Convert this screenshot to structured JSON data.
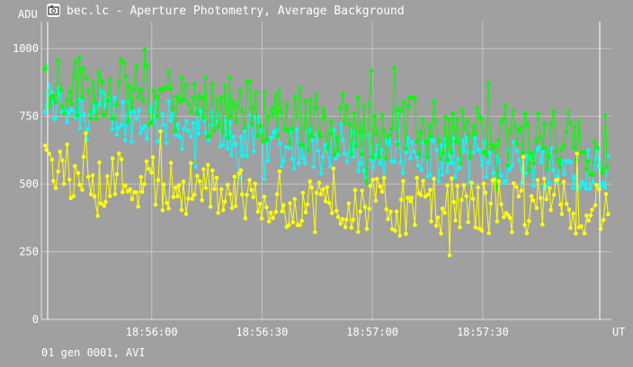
{
  "window": {
    "title": "bec.lc - Aperture Photometry, Average Background",
    "icon": "camera-icon"
  },
  "footer": {
    "text": "01 gen 0001, AVI"
  },
  "chart_data": {
    "type": "scatter",
    "title": "",
    "xlabel": "UT",
    "ylabel": "ADU",
    "x_range": [
      "18:55:30",
      "18:58:05"
    ],
    "ylim": [
      0,
      1100
    ],
    "x_ticks": [
      "18:56:00",
      "18:56:30",
      "18:57:00",
      "18:57:30"
    ],
    "y_ticks": [
      0,
      250,
      500,
      750,
      1000
    ],
    "grid": true,
    "background_color": "#a0a0a0",
    "series": [
      {
        "color": "#00ffff",
        "trend": [
          [
            0,
            800
          ],
          [
            0.5,
            620
          ],
          [
            1,
            560
          ]
        ],
        "spread": 110
      },
      {
        "color": "#00ff00",
        "trend": [
          [
            0,
            880
          ],
          [
            0.5,
            730
          ],
          [
            1,
            640
          ]
        ],
        "spread": 150
      },
      {
        "color": "#ffff00",
        "trend": [
          [
            0,
            560
          ],
          [
            0.5,
            420
          ],
          [
            1,
            420
          ]
        ],
        "spread": 130
      }
    ]
  }
}
